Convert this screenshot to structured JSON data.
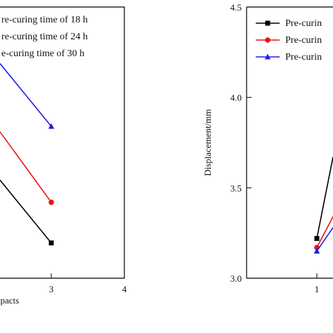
{
  "chart_data": [
    {
      "type": "line",
      "xlabel": "npacts",
      "ylabel": "",
      "xlim": [
        null,
        4
      ],
      "x_ticks": [
        "3",
        "4"
      ],
      "legend": {
        "placement": "top-left",
        "entries": [
          {
            "label": "re-curing time of 18 h",
            "marker": "square"
          },
          {
            "label": "re-curing time of 24 h",
            "marker": "circle"
          },
          {
            "label": "e-curing time of 30 h",
            "marker": "triangle"
          }
        ]
      },
      "series": [
        {
          "color": "#000000",
          "marker": "square",
          "points": [
            {
              "x": 3,
              "y": 0.13
            }
          ]
        },
        {
          "color": "#e3141a",
          "marker": "circle",
          "points": [
            {
              "x": 3,
              "y": 0.28
            }
          ]
        },
        {
          "color": "#1f1fe6",
          "marker": "triangle",
          "points": [
            {
              "x": 3,
              "y": 0.56
            }
          ]
        }
      ]
    },
    {
      "type": "line",
      "xlabel": "",
      "ylabel": "Displacement/mm",
      "ylim": [
        3.0,
        4.5
      ],
      "y_ticks": [
        "3.0",
        "3.5",
        "4.0",
        "4.5"
      ],
      "x_ticks": [
        "1"
      ],
      "legend": {
        "placement": "top-left",
        "entries": [
          {
            "label": "Pre-curin",
            "marker": "square"
          },
          {
            "label": "Pre-curin",
            "marker": "circle"
          },
          {
            "label": "Pre-curin",
            "marker": "triangle"
          }
        ]
      },
      "series": [
        {
          "color": "#000000",
          "marker": "square",
          "points": [
            {
              "x": 1,
              "y": 3.22
            }
          ]
        },
        {
          "color": "#e3141a",
          "marker": "circle",
          "points": [
            {
              "x": 1,
              "y": 3.17
            }
          ]
        },
        {
          "color": "#1f1fe6",
          "marker": "triangle",
          "points": [
            {
              "x": 1,
              "y": 3.15
            }
          ]
        }
      ]
    }
  ]
}
